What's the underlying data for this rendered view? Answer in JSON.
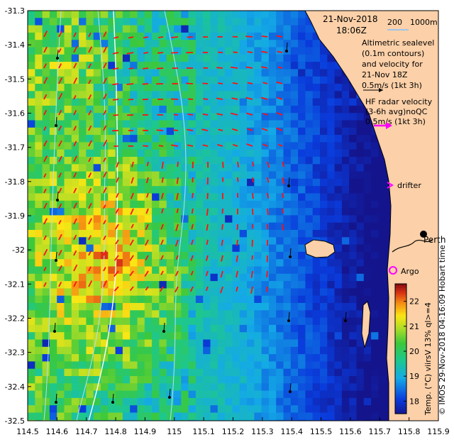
{
  "header": {
    "date": "21-Nov-2018",
    "time": "18:06Z"
  },
  "bathymetry_legend": {
    "contour_200": "200",
    "contour_1000": "1000m"
  },
  "legend": {
    "altimetry_lines": [
      "Altimetric sealevel",
      "(0.1m contours)",
      "and velocity for",
      "21-Nov 18Z",
      "0.5m/s (1kt 3h)"
    ],
    "hf_radar_lines": [
      "HF radar velocity",
      "(3-6h avg)noQC",
      "0.5m/s (1kt 3h)"
    ],
    "drifter_label": "drifter",
    "argo_label": "Argo",
    "place_label": "Perth"
  },
  "side_credits": {
    "imos": "© IMOS 29-Nov-2018 04:16:09 Hobart time"
  },
  "colorbar": {
    "title": "Temp. (°C) viirsV 13% ql>=4",
    "ticks": [
      "18",
      "19",
      "20",
      "21",
      "22"
    ],
    "range": [
      17.5,
      22.7
    ]
  },
  "axes": {
    "x_ticks": [
      "114.5",
      "114.6",
      "114.7",
      "114.8",
      "114.9",
      "115",
      "115.1",
      "115.2",
      "115.3",
      "115.4",
      "115.5",
      "115.6",
      "115.7",
      "115.8",
      "115.9"
    ],
    "y_ticks": [
      "-31.3",
      "-31.4",
      "-31.5",
      "-31.6",
      "-31.7",
      "-31.8",
      "-31.9",
      "-32",
      "-32.1",
      "-32.2",
      "-32.3",
      "-32.4",
      "-32.5"
    ],
    "x_range": [
      114.5,
      115.9
    ],
    "y_range": [
      -32.5,
      -31.3
    ]
  },
  "colors": {
    "land": "#fcd0a8",
    "velocity_arrow": "#ff1010",
    "hf_radar": "#ff00ff",
    "bathymetry_line": "#b0e0ff"
  }
}
